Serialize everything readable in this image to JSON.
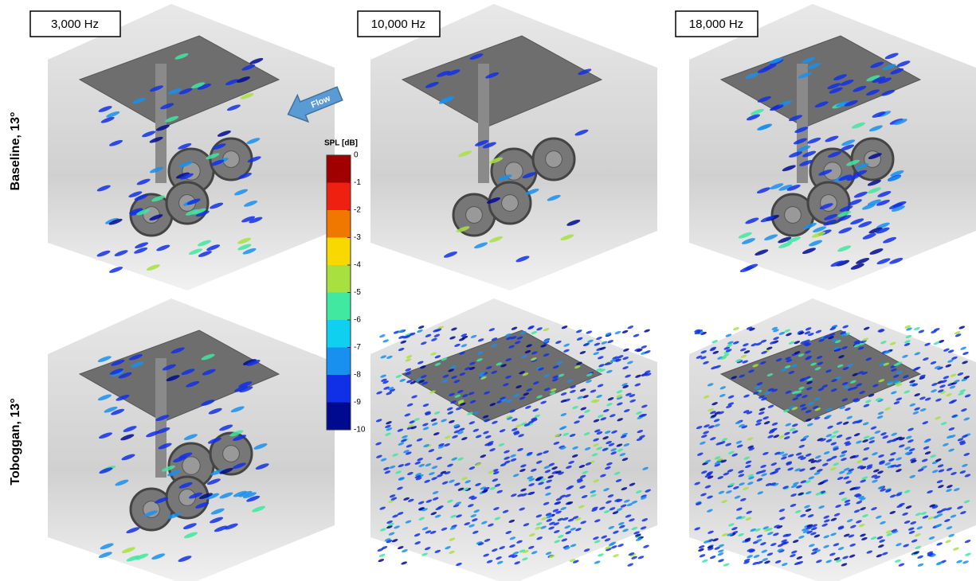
{
  "columns": [
    "3,000 Hz",
    "10,000 Hz",
    "18,000 Hz"
  ],
  "rows": [
    "Baseline, 13°",
    "Toboggan, 13°"
  ],
  "flow_label": "Flow",
  "colorbar": {
    "title": "SPL [dB]",
    "range": [
      -10,
      0
    ],
    "ticks": [
      0,
      -1,
      -2,
      -3,
      -4,
      -5,
      -6,
      -7,
      -8,
      -9,
      -10
    ],
    "colors": [
      "#a00000",
      "#f02010",
      "#f07800",
      "#f8d800",
      "#a8e040",
      "#40e8a0",
      "#10d0f0",
      "#1890f0",
      "#1030e8",
      "#000a90"
    ]
  }
}
